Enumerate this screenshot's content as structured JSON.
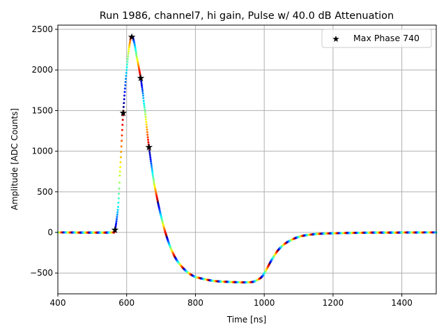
{
  "chart_data": {
    "type": "scatter",
    "title": "Run 1986, channel7, hi gain, Pulse w/ 40.0 dB Attenuation",
    "xlabel": "Time [ns]",
    "ylabel": "Amplitude [ADC Counts]",
    "xlim": [
      400,
      1500
    ],
    "ylim": [
      -756,
      2552
    ],
    "xticks": [
      400,
      600,
      800,
      1000,
      1200,
      1400
    ],
    "yticks": [
      -500,
      0,
      500,
      1000,
      1500,
      2000,
      2500
    ],
    "xtick_labels": [
      "400",
      "600",
      "800",
      "1000",
      "1200",
      "1400"
    ],
    "ytick_labels": [
      "−500",
      "0",
      "500",
      "1000",
      "1500",
      "2000",
      "2500"
    ],
    "grid": true,
    "legend_placement": "top-right",
    "colormap": "jet",
    "waveform": {
      "x": [
        400,
        560,
        566,
        575,
        580,
        590,
        600,
        610,
        615,
        620,
        630,
        641,
        650,
        665,
        680,
        700,
        720,
        740,
        760,
        780,
        800,
        850,
        900,
        950,
        970,
        990,
        1000,
        1020,
        1040,
        1060,
        1080,
        1100,
        1120,
        1150,
        1200,
        1300,
        1500
      ],
      "y": [
        0,
        0,
        30,
        300,
        700,
        1469,
        2000,
        2350,
        2405,
        2370,
        2150,
        1899,
        1600,
        1048,
        600,
        200,
        -100,
        -300,
        -420,
        -500,
        -550,
        -595,
        -610,
        -615,
        -605,
        -560,
        -500,
        -350,
        -220,
        -140,
        -90,
        -55,
        -35,
        -20,
        -10,
        -3,
        0
      ]
    },
    "series": [
      {
        "name": "Max Phase 740",
        "marker": "star",
        "color": "#000000",
        "x": [
          566,
          590,
          615,
          641,
          665
        ],
        "y": [
          30,
          1469,
          2405,
          1899,
          1048
        ]
      }
    ]
  }
}
